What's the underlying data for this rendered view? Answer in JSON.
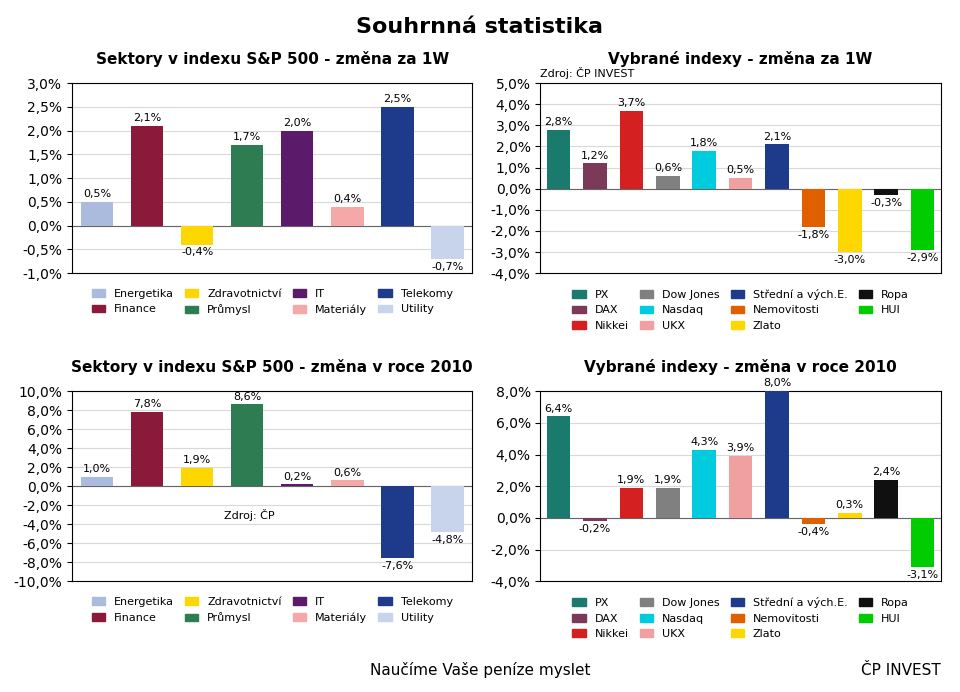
{
  "title": "Souhrnná statistika",
  "annotations": [
    "Naučíme Vaše peníze myslet",
    "ČP INVEST"
  ],
  "chart_data": [
    {
      "type": "bar",
      "title": "Sektory v indexu S&P 500 - změna za 1W",
      "categories": [
        "Energetika",
        "Finance",
        "Zdravotnictví",
        "Průmysl",
        "IT",
        "Materiály",
        "Telekomy",
        "Utility"
      ],
      "values": [
        0.5,
        2.1,
        -0.4,
        1.7,
        2.0,
        0.4,
        2.5,
        -0.7
      ],
      "value_labels": [
        "0,5%",
        "2,1%",
        "-0,4%",
        "1,7%",
        "2,0%",
        "0,4%",
        "2,5%",
        "-0,7%"
      ],
      "colors": [
        "#AABBDD",
        "#8B1A3A",
        "#FFD700",
        "#2E7D52",
        "#5C1A6A",
        "#F4A8A8",
        "#1E3A8A",
        "#C8D4EC"
      ],
      "ylim": [
        -1.0,
        3.0
      ],
      "yticks": [
        {
          "value": -1.0,
          "label": "-1,0%"
        },
        {
          "value": -0.5,
          "label": "-0,5%"
        },
        {
          "value": 0.0,
          "label": "0,0%"
        },
        {
          "value": 0.5,
          "label": "0,5%"
        },
        {
          "value": 1.0,
          "label": "1,0%"
        },
        {
          "value": 1.5,
          "label": "1,5%"
        },
        {
          "value": 2.0,
          "label": "2,0%"
        },
        {
          "value": 2.5,
          "label": "2,5%"
        },
        {
          "value": 3.0,
          "label": "3,0%"
        }
      ],
      "grid": true,
      "legend": "below",
      "data_labels": true,
      "tick_labels": "y"
    },
    {
      "type": "bar",
      "title": "Vybrané indexy - změna za 1W",
      "subtitle": "Zdroj: ČP INVEST",
      "categories": [
        "PX",
        "DAX",
        "Nikkei",
        "Dow Jones",
        "Nasdaq",
        "UKX",
        "Střední a vých.E.",
        "Nemovitosti",
        "Zlato",
        "Ropa",
        "HUI"
      ],
      "values": [
        2.8,
        1.2,
        3.7,
        0.6,
        1.8,
        0.5,
        2.1,
        -1.8,
        -3.0,
        -0.3,
        -2.9
      ],
      "value_labels": [
        "2,8%",
        "1,2%",
        "3,7%",
        "0,6%",
        "1,8%",
        "0,5%",
        "2,1%",
        "-1,8%",
        "-3,0%",
        "-0,3%",
        "-2,9%"
      ],
      "colors": [
        "#1A7A6E",
        "#7B3A5A",
        "#D42020",
        "#808080",
        "#00CCDD",
        "#F0A0A0",
        "#1E3A8A",
        "#E06000",
        "#FFD700",
        "#101010",
        "#00CC00"
      ],
      "ylim": [
        -4.0,
        5.0
      ],
      "yticks": [
        {
          "value": -4.0,
          "label": "-4,0%"
        },
        {
          "value": -3.0,
          "label": "-3,0%"
        },
        {
          "value": -2.0,
          "label": "-2,0%"
        },
        {
          "value": -1.0,
          "label": "-1,0%"
        },
        {
          "value": 0.0,
          "label": "0,0%"
        },
        {
          "value": 1.0,
          "label": "1,0%"
        },
        {
          "value": 2.0,
          "label": "2,0%"
        },
        {
          "value": 3.0,
          "label": "3,0%"
        },
        {
          "value": 4.0,
          "label": "4,0%"
        },
        {
          "value": 5.0,
          "label": "5,0%"
        }
      ],
      "grid": true,
      "legend": "below",
      "data_labels": true,
      "tick_labels": "y"
    },
    {
      "type": "bar",
      "title": "Sektory v indexu S&P 500 - změna v roce 2010",
      "annotations": [
        "Zdroj: ČP"
      ],
      "categories": [
        "Energetika",
        "Finance",
        "Zdravotnictví",
        "Průmysl",
        "IT",
        "Materiály",
        "Telekomy",
        "Utility"
      ],
      "values": [
        1.0,
        7.8,
        1.9,
        8.6,
        0.2,
        0.6,
        -7.6,
        -4.8
      ],
      "value_labels": [
        "1,0%",
        "7,8%",
        "1,9%",
        "8,6%",
        "0,2%",
        "0,6%",
        "-7,6%",
        "-4,8%"
      ],
      "colors": [
        "#AABBDD",
        "#8B1A3A",
        "#FFD700",
        "#2E7D52",
        "#5C1A6A",
        "#F4A8A8",
        "#1E3A8A",
        "#C8D4EC"
      ],
      "ylim": [
        -10.0,
        10.0
      ],
      "yticks": [
        {
          "value": -10.0,
          "label": "-10,0%"
        },
        {
          "value": -8.0,
          "label": "-8,0%"
        },
        {
          "value": -6.0,
          "label": "-6,0%"
        },
        {
          "value": -4.0,
          "label": "-4,0%"
        },
        {
          "value": -2.0,
          "label": "-2,0%"
        },
        {
          "value": 0.0,
          "label": "0,0%"
        },
        {
          "value": 2.0,
          "label": "2,0%"
        },
        {
          "value": 4.0,
          "label": "4,0%"
        },
        {
          "value": 6.0,
          "label": "6,0%"
        },
        {
          "value": 8.0,
          "label": "8,0%"
        },
        {
          "value": 10.0,
          "label": "10,0%"
        }
      ],
      "grid": true,
      "legend": "below",
      "data_labels": true,
      "tick_labels": "y"
    },
    {
      "type": "bar",
      "title": "Vybrané indexy - změna v roce 2010",
      "categories": [
        "PX",
        "DAX",
        "Nikkei",
        "Dow Jones",
        "Nasdaq",
        "UKX",
        "Střední a vých.E.",
        "Nemovitosti",
        "Zlato",
        "Ropa",
        "HUI"
      ],
      "values": [
        6.4,
        -0.2,
        1.9,
        1.9,
        4.3,
        3.9,
        8.0,
        -0.4,
        0.3,
        2.4,
        -3.1
      ],
      "value_labels": [
        "6,4%",
        "-0,2%",
        "1,9%",
        "1,9%",
        "4,3%",
        "3,9%",
        "8,0%",
        "-0,4%",
        "0,3%",
        "2,4%",
        "-3,1%"
      ],
      "colors": [
        "#1A7A6E",
        "#7B3A5A",
        "#D42020",
        "#808080",
        "#00CCDD",
        "#F0A0A0",
        "#1E3A8A",
        "#E06000",
        "#FFD700",
        "#101010",
        "#00CC00"
      ],
      "ylim": [
        -4.0,
        8.0
      ],
      "yticks": [
        {
          "value": -4.0,
          "label": "-4,0%"
        },
        {
          "value": -2.0,
          "label": "-2,0%"
        },
        {
          "value": 0.0,
          "label": "0,0%"
        },
        {
          "value": 2.0,
          "label": "2,0%"
        },
        {
          "value": 4.0,
          "label": "4,0%"
        },
        {
          "value": 6.0,
          "label": "6,0%"
        },
        {
          "value": 8.0,
          "label": "8,0%"
        }
      ],
      "grid": true,
      "legend": "below",
      "data_labels": true,
      "tick_labels": "y"
    }
  ]
}
